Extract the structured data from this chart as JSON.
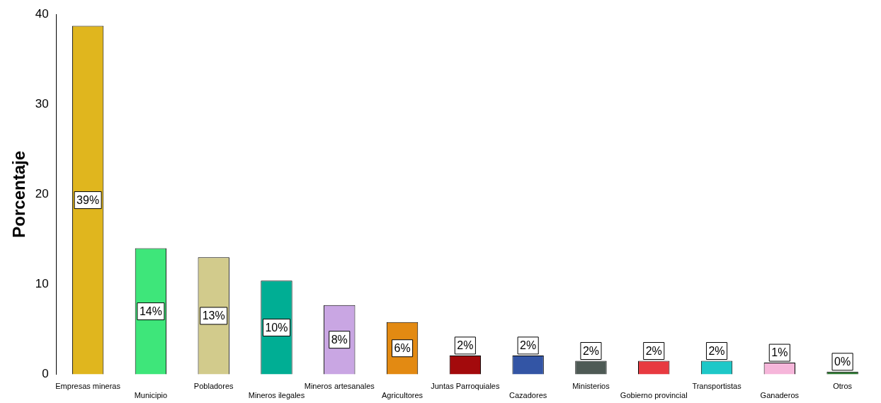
{
  "chart_data": {
    "type": "bar",
    "ylabel": "Porcentaje",
    "categories": [
      "Empresas mineras",
      "Municipio",
      "Pobladores",
      "Mineros ilegales",
      "Mineros artesanales",
      "Agricultores",
      "Juntas Parroquiales",
      "Cazadores",
      "Ministerios",
      "Gobierno provincial",
      "Transportistas",
      "Ganaderos",
      "Otros"
    ],
    "values": [
      38.7,
      14.0,
      13.0,
      10.4,
      7.7,
      5.8,
      2.1,
      2.1,
      1.5,
      1.5,
      1.5,
      1.3,
      0.3
    ],
    "colors": [
      "#e0b61e",
      "#3ee67a",
      "#d2cb8c",
      "#00ae94",
      "#c9a6e3",
      "#e38a12",
      "#a30a0c",
      "#3355a5",
      "#4e5a55",
      "#e83a40",
      "#1ec8c8",
      "#f6b6da",
      "#2e7a32"
    ],
    "value_labels": [
      "39%",
      "14%",
      "13%",
      "10%",
      "8%",
      "6%",
      "2%",
      "2%",
      "2%",
      "2%",
      "2%",
      "1%",
      "0%"
    ],
    "ylim": [
      0,
      40
    ],
    "yticks": [
      0,
      10,
      20,
      30,
      40
    ],
    "grid": false,
    "legend": false
  }
}
